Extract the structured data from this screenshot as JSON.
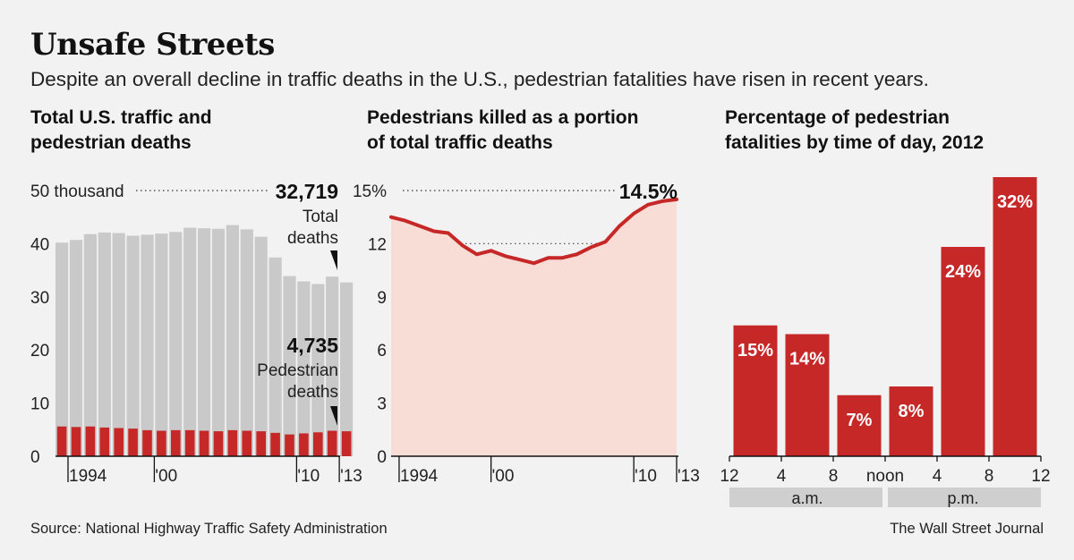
{
  "header": {
    "title": "Unsafe Streets",
    "subtitle": "Despite an overall decline in traffic deaths in the U.S., pedestrian fatalities have risen in recent years."
  },
  "footer": {
    "source": "Source: National Highway Traffic Safety Administration",
    "credit": "The Wall Street Journal"
  },
  "colors": {
    "red": "#c62828",
    "gray": "#c9c9c9",
    "pink": "#f8dcd6",
    "background": "#f2f2f2"
  },
  "chart_data": [
    {
      "type": "bar",
      "title_lines": [
        "Total U.S. traffic and",
        "pedestrian deaths"
      ],
      "ylim": [
        0,
        50
      ],
      "yticks": [
        "0",
        "10",
        "20",
        "30",
        "40",
        "50 thousand"
      ],
      "ytick_values": [
        0,
        10,
        20,
        30,
        40,
        50
      ],
      "xticks": [
        {
          "year": 1994,
          "label": "1994"
        },
        {
          "year": 2000,
          "label": "'00"
        },
        {
          "year": 2010,
          "label": "'10"
        },
        {
          "year": 2013,
          "label": "'13"
        }
      ],
      "categories": [
        1993,
        1994,
        1995,
        1996,
        1997,
        1998,
        1999,
        2000,
        2001,
        2002,
        2003,
        2004,
        2005,
        2006,
        2007,
        2008,
        2009,
        2010,
        2011,
        2012,
        2013
      ],
      "series": [
        {
          "name": "Total deaths",
          "values": [
            40.2,
            40.7,
            41.8,
            42.1,
            42.0,
            41.5,
            41.7,
            41.9,
            42.2,
            43.0,
            42.9,
            42.8,
            43.5,
            42.7,
            41.3,
            37.4,
            33.9,
            32.9,
            32.4,
            33.8,
            32.7
          ]
        },
        {
          "name": "Pedestrian deaths",
          "values": [
            5.6,
            5.5,
            5.6,
            5.4,
            5.3,
            5.2,
            4.9,
            4.8,
            4.9,
            4.9,
            4.8,
            4.7,
            4.9,
            4.8,
            4.7,
            4.4,
            4.1,
            4.3,
            4.5,
            4.8,
            4.7
          ]
        }
      ],
      "annotations": {
        "total_value": "32,719",
        "total_label_lines": [
          "Total",
          "deaths"
        ],
        "ped_value": "4,735",
        "ped_label_lines": [
          "Pedestrian",
          "deaths"
        ]
      }
    },
    {
      "type": "area",
      "title_lines": [
        "Pedestrians killed as a portion",
        "of total traffic deaths"
      ],
      "ylim": [
        0,
        15
      ],
      "yticks": [
        "0",
        "3",
        "6",
        "9",
        "12",
        "15%"
      ],
      "ytick_values": [
        0,
        3,
        6,
        9,
        12,
        15
      ],
      "xticks": [
        {
          "year": 1994,
          "label": "1994"
        },
        {
          "year": 2000,
          "label": "'00"
        },
        {
          "year": 2010,
          "label": "'10"
        },
        {
          "year": 2013,
          "label": "'13"
        }
      ],
      "x": [
        1993,
        1994,
        1995,
        1996,
        1997,
        1998,
        1999,
        2000,
        2001,
        2002,
        2003,
        2004,
        2005,
        2006,
        2007,
        2008,
        2009,
        2010,
        2011,
        2012,
        2013
      ],
      "values": [
        13.5,
        13.3,
        13.0,
        12.7,
        12.6,
        11.9,
        11.4,
        11.6,
        11.3,
        11.1,
        10.9,
        11.2,
        11.2,
        11.4,
        11.8,
        12.1,
        13.0,
        13.7,
        14.2,
        14.4,
        14.5
      ],
      "reference_line": 12,
      "annotations": {
        "last_value": "14.5%"
      }
    },
    {
      "type": "bar",
      "title_lines": [
        "Percentage of pedestrian",
        "fatalities by time of day, 2012"
      ],
      "ylim": [
        0,
        32
      ],
      "xtick_labels": [
        "12",
        "4",
        "8",
        "noon",
        "4",
        "8",
        "12"
      ],
      "period_labels": [
        "a.m.",
        "p.m."
      ],
      "categories": [
        "12-4 a.m.",
        "4-8 a.m.",
        "8 a.m.-noon",
        "noon-4 p.m.",
        "4-8 p.m.",
        "8 p.m.-12"
      ],
      "values": [
        15,
        14,
        7,
        8,
        24,
        32
      ],
      "value_labels": [
        "15%",
        "14%",
        "7%",
        "8%",
        "24%",
        "32%"
      ]
    }
  ]
}
